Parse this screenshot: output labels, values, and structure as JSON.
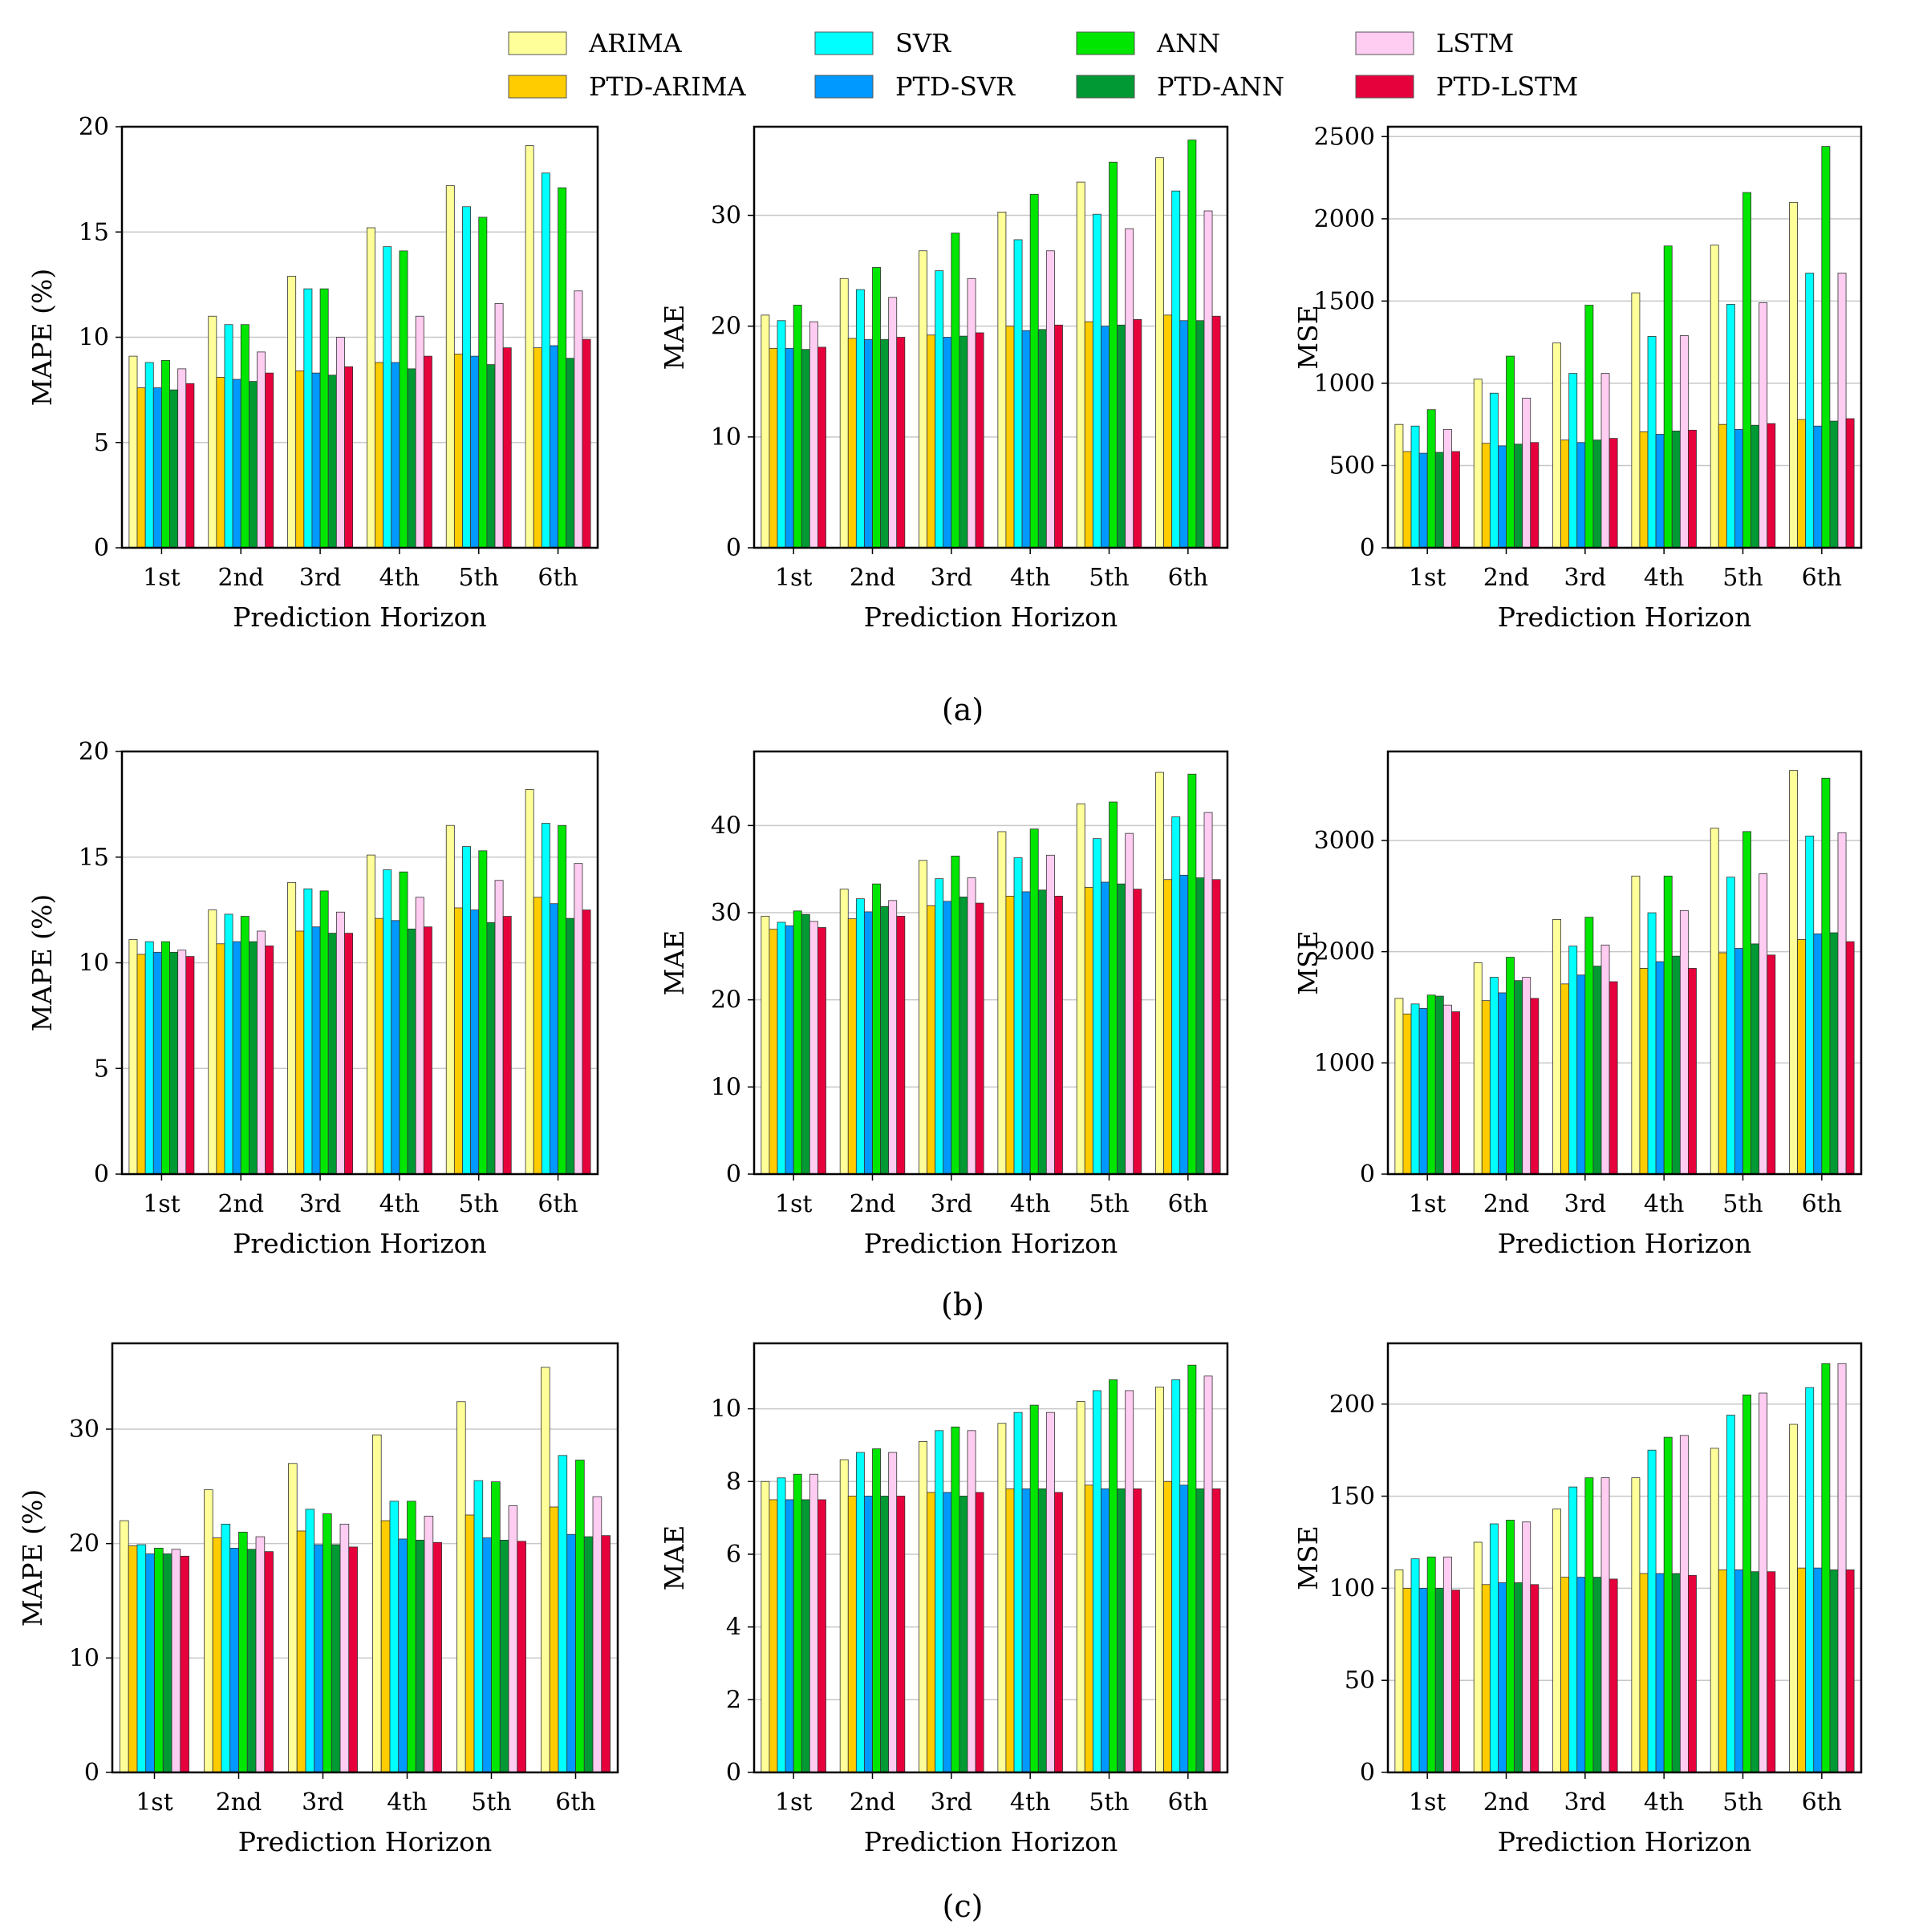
{
  "legend": [
    {
      "name": "ARIMA",
      "color": "#ffff99"
    },
    {
      "name": "SVR",
      "color": "#00ffff"
    },
    {
      "name": "ANN",
      "color": "#00e600"
    },
    {
      "name": "LSTM",
      "color": "#ffccf2"
    },
    {
      "name": "PTD-ARIMA",
      "color": "#ffcc00"
    },
    {
      "name": "PTD-SVR",
      "color": "#0099ff"
    },
    {
      "name": "PTD-ANN",
      "color": "#009933"
    },
    {
      "name": "PTD-LSTM",
      "color": "#e6003c"
    }
  ],
  "captions": {
    "a": "(a)",
    "b": "(b)",
    "c": "(c)"
  },
  "chart_data": [
    {
      "panel": "a",
      "type": "bar",
      "title": "",
      "xlabel": "Prediction Horizon",
      "ylabel": "MAPE (%)",
      "categories": [
        "1st",
        "2nd",
        "3rd",
        "4th",
        "5th",
        "6th"
      ],
      "ylim": [
        0,
        20
      ],
      "yticks": [
        0,
        5,
        10,
        15,
        20
      ],
      "grid": true,
      "series": [
        {
          "name": "ARIMA",
          "values": [
            9.1,
            11.0,
            12.9,
            15.2,
            17.2,
            19.1
          ]
        },
        {
          "name": "PTD-ARIMA",
          "values": [
            7.6,
            8.1,
            8.4,
            8.8,
            9.2,
            9.5
          ]
        },
        {
          "name": "SVR",
          "values": [
            8.8,
            10.6,
            12.3,
            14.3,
            16.2,
            17.8
          ]
        },
        {
          "name": "PTD-SVR",
          "values": [
            7.6,
            8.0,
            8.3,
            8.8,
            9.1,
            9.6
          ]
        },
        {
          "name": "ANN",
          "values": [
            8.9,
            10.6,
            12.3,
            14.1,
            15.7,
            17.1
          ]
        },
        {
          "name": "PTD-ANN",
          "values": [
            7.5,
            7.9,
            8.2,
            8.5,
            8.7,
            9.0
          ]
        },
        {
          "name": "LSTM",
          "values": [
            8.5,
            9.3,
            10.0,
            11.0,
            11.6,
            12.2
          ]
        },
        {
          "name": "PTD-LSTM",
          "values": [
            7.8,
            8.3,
            8.6,
            9.1,
            9.5,
            9.9
          ]
        }
      ]
    },
    {
      "panel": "a",
      "type": "bar",
      "title": "",
      "xlabel": "Prediction Horizon",
      "ylabel": "MAE",
      "categories": [
        "1st",
        "2nd",
        "3rd",
        "4th",
        "5th",
        "6th"
      ],
      "ylim": [
        0,
        38
      ],
      "yticks": [
        0,
        10,
        20,
        30
      ],
      "grid": true,
      "series": [
        {
          "name": "ARIMA",
          "values": [
            21.0,
            24.3,
            26.8,
            30.3,
            33.0,
            35.2
          ]
        },
        {
          "name": "PTD-ARIMA",
          "values": [
            18.0,
            18.9,
            19.2,
            20.0,
            20.4,
            21.0
          ]
        },
        {
          "name": "SVR",
          "values": [
            20.5,
            23.3,
            25.0,
            27.8,
            30.1,
            32.2
          ]
        },
        {
          "name": "PTD-SVR",
          "values": [
            18.0,
            18.8,
            19.0,
            19.6,
            20.0,
            20.5
          ]
        },
        {
          "name": "ANN",
          "values": [
            21.9,
            25.3,
            28.4,
            31.9,
            34.8,
            36.8
          ]
        },
        {
          "name": "PTD-ANN",
          "values": [
            17.9,
            18.8,
            19.1,
            19.7,
            20.1,
            20.5
          ]
        },
        {
          "name": "LSTM",
          "values": [
            20.4,
            22.6,
            24.3,
            26.8,
            28.8,
            30.4
          ]
        },
        {
          "name": "PTD-LSTM",
          "values": [
            18.1,
            19.0,
            19.4,
            20.1,
            20.6,
            20.9
          ]
        }
      ]
    },
    {
      "panel": "a",
      "type": "bar",
      "title": "",
      "xlabel": "Prediction Horizon",
      "ylabel": "MSE",
      "categories": [
        "1st",
        "2nd",
        "3rd",
        "4th",
        "5th",
        "6th"
      ],
      "ylim": [
        0,
        2560
      ],
      "yticks": [
        0,
        500,
        1000,
        1500,
        2000,
        2500
      ],
      "grid": true,
      "series": [
        {
          "name": "ARIMA",
          "values": [
            750,
            1025,
            1245,
            1550,
            1840,
            2100
          ]
        },
        {
          "name": "PTD-ARIMA",
          "values": [
            585,
            635,
            655,
            705,
            750,
            780
          ]
        },
        {
          "name": "SVR",
          "values": [
            740,
            940,
            1060,
            1285,
            1480,
            1670
          ]
        },
        {
          "name": "PTD-SVR",
          "values": [
            575,
            620,
            640,
            690,
            720,
            740
          ]
        },
        {
          "name": "ANN",
          "values": [
            840,
            1165,
            1475,
            1835,
            2160,
            2440
          ]
        },
        {
          "name": "PTD-ANN",
          "values": [
            580,
            630,
            655,
            710,
            745,
            770
          ]
        },
        {
          "name": "LSTM",
          "values": [
            720,
            910,
            1060,
            1290,
            1490,
            1670
          ]
        },
        {
          "name": "PTD-LSTM",
          "values": [
            585,
            640,
            665,
            715,
            755,
            785
          ]
        }
      ]
    },
    {
      "panel": "b",
      "type": "bar",
      "title": "",
      "xlabel": "Prediction Horizon",
      "ylabel": "MAPE (%)",
      "categories": [
        "1st",
        "2nd",
        "3rd",
        "4th",
        "5th",
        "6th"
      ],
      "ylim": [
        0,
        20
      ],
      "yticks": [
        0,
        5,
        10,
        15,
        20
      ],
      "grid": true,
      "series": [
        {
          "name": "ARIMA",
          "values": [
            11.1,
            12.5,
            13.8,
            15.1,
            16.5,
            18.2
          ]
        },
        {
          "name": "PTD-ARIMA",
          "values": [
            10.4,
            10.9,
            11.5,
            12.1,
            12.6,
            13.1
          ]
        },
        {
          "name": "SVR",
          "values": [
            11.0,
            12.3,
            13.5,
            14.4,
            15.5,
            16.6
          ]
        },
        {
          "name": "PTD-SVR",
          "values": [
            10.5,
            11.0,
            11.7,
            12.0,
            12.5,
            12.8
          ]
        },
        {
          "name": "ANN",
          "values": [
            11.0,
            12.2,
            13.4,
            14.3,
            15.3,
            16.5
          ]
        },
        {
          "name": "PTD-ANN",
          "values": [
            10.5,
            11.0,
            11.4,
            11.6,
            11.9,
            12.1
          ]
        },
        {
          "name": "LSTM",
          "values": [
            10.6,
            11.5,
            12.4,
            13.1,
            13.9,
            14.7
          ]
        },
        {
          "name": "PTD-LSTM",
          "values": [
            10.3,
            10.8,
            11.4,
            11.7,
            12.2,
            12.5
          ]
        }
      ]
    },
    {
      "panel": "b",
      "type": "bar",
      "title": "",
      "xlabel": "Prediction Horizon",
      "ylabel": "MAE",
      "categories": [
        "1st",
        "2nd",
        "3rd",
        "4th",
        "5th",
        "6th"
      ],
      "ylim": [
        0,
        48.5
      ],
      "yticks": [
        0,
        10,
        20,
        30,
        40
      ],
      "grid": true,
      "series": [
        {
          "name": "ARIMA",
          "values": [
            29.6,
            32.7,
            36.0,
            39.3,
            42.5,
            46.1
          ]
        },
        {
          "name": "PTD-ARIMA",
          "values": [
            28.1,
            29.3,
            30.8,
            31.9,
            32.9,
            33.8
          ]
        },
        {
          "name": "SVR",
          "values": [
            28.9,
            31.6,
            33.9,
            36.3,
            38.5,
            41.0
          ]
        },
        {
          "name": "PTD-SVR",
          "values": [
            28.5,
            30.1,
            31.3,
            32.4,
            33.5,
            34.3
          ]
        },
        {
          "name": "ANN",
          "values": [
            30.2,
            33.3,
            36.5,
            39.6,
            42.7,
            45.9
          ]
        },
        {
          "name": "PTD-ANN",
          "values": [
            29.8,
            30.7,
            31.8,
            32.6,
            33.3,
            34.0
          ]
        },
        {
          "name": "LSTM",
          "values": [
            29.0,
            31.4,
            34.0,
            36.6,
            39.1,
            41.5
          ]
        },
        {
          "name": "PTD-LSTM",
          "values": [
            28.3,
            29.6,
            31.1,
            31.9,
            32.7,
            33.8
          ]
        }
      ]
    },
    {
      "panel": "b",
      "type": "bar",
      "title": "",
      "xlabel": "Prediction Horizon",
      "ylabel": "MSE",
      "categories": [
        "1st",
        "2nd",
        "3rd",
        "4th",
        "5th",
        "6th"
      ],
      "ylim": [
        0,
        3800
      ],
      "yticks": [
        0,
        1000,
        2000,
        3000
      ],
      "grid": true,
      "series": [
        {
          "name": "ARIMA",
          "values": [
            1580,
            1900,
            2290,
            2680,
            3110,
            3630
          ]
        },
        {
          "name": "PTD-ARIMA",
          "values": [
            1440,
            1560,
            1710,
            1850,
            1990,
            2110
          ]
        },
        {
          "name": "SVR",
          "values": [
            1530,
            1770,
            2050,
            2350,
            2670,
            3040
          ]
        },
        {
          "name": "PTD-SVR",
          "values": [
            1490,
            1630,
            1790,
            1910,
            2030,
            2160
          ]
        },
        {
          "name": "ANN",
          "values": [
            1610,
            1950,
            2310,
            2680,
            3080,
            3560
          ]
        },
        {
          "name": "PTD-ANN",
          "values": [
            1600,
            1740,
            1870,
            1960,
            2070,
            2170
          ]
        },
        {
          "name": "LSTM",
          "values": [
            1520,
            1770,
            2060,
            2370,
            2700,
            3070
          ]
        },
        {
          "name": "PTD-LSTM",
          "values": [
            1460,
            1580,
            1730,
            1850,
            1970,
            2090
          ]
        }
      ]
    },
    {
      "panel": "c",
      "type": "bar",
      "title": "",
      "xlabel": "Prediction Horizon",
      "ylabel": "MAPE (%)",
      "categories": [
        "1st",
        "2nd",
        "3rd",
        "4th",
        "5th",
        "6th"
      ],
      "ylim": [
        0,
        37.5
      ],
      "yticks": [
        0,
        10,
        20,
        30
      ],
      "grid": true,
      "series": [
        {
          "name": "ARIMA",
          "values": [
            22.0,
            24.7,
            27.0,
            29.5,
            32.4,
            35.4
          ]
        },
        {
          "name": "PTD-ARIMA",
          "values": [
            19.8,
            20.5,
            21.1,
            22.0,
            22.5,
            23.2
          ]
        },
        {
          "name": "SVR",
          "values": [
            19.9,
            21.7,
            23.0,
            23.7,
            25.5,
            27.7
          ]
        },
        {
          "name": "PTD-SVR",
          "values": [
            19.1,
            19.6,
            19.9,
            20.4,
            20.5,
            20.8
          ]
        },
        {
          "name": "ANN",
          "values": [
            19.6,
            21.0,
            22.6,
            23.7,
            25.4,
            27.3
          ]
        },
        {
          "name": "PTD-ANN",
          "values": [
            19.1,
            19.5,
            19.9,
            20.3,
            20.3,
            20.6
          ]
        },
        {
          "name": "LSTM",
          "values": [
            19.5,
            20.6,
            21.7,
            22.4,
            23.3,
            24.1
          ]
        },
        {
          "name": "PTD-LSTM",
          "values": [
            18.9,
            19.3,
            19.7,
            20.1,
            20.2,
            20.7
          ]
        }
      ]
    },
    {
      "panel": "c",
      "type": "bar",
      "title": "",
      "xlabel": "Prediction Horizon",
      "ylabel": "MAE",
      "categories": [
        "1st",
        "2nd",
        "3rd",
        "4th",
        "5th",
        "6th"
      ],
      "ylim": [
        0,
        11.8
      ],
      "yticks": [
        0,
        2,
        4,
        6,
        8,
        10
      ],
      "grid": true,
      "series": [
        {
          "name": "ARIMA",
          "values": [
            8.0,
            8.6,
            9.1,
            9.6,
            10.2,
            10.6
          ]
        },
        {
          "name": "PTD-ARIMA",
          "values": [
            7.5,
            7.6,
            7.7,
            7.8,
            7.9,
            8.0
          ]
        },
        {
          "name": "SVR",
          "values": [
            8.1,
            8.8,
            9.4,
            9.9,
            10.5,
            10.8
          ]
        },
        {
          "name": "PTD-SVR",
          "values": [
            7.5,
            7.6,
            7.7,
            7.8,
            7.8,
            7.9
          ]
        },
        {
          "name": "ANN",
          "values": [
            8.2,
            8.9,
            9.5,
            10.1,
            10.8,
            11.2
          ]
        },
        {
          "name": "PTD-ANN",
          "values": [
            7.5,
            7.6,
            7.6,
            7.8,
            7.8,
            7.8
          ]
        },
        {
          "name": "LSTM",
          "values": [
            8.2,
            8.8,
            9.4,
            9.9,
            10.5,
            10.9
          ]
        },
        {
          "name": "PTD-LSTM",
          "values": [
            7.5,
            7.6,
            7.7,
            7.7,
            7.8,
            7.8
          ]
        }
      ]
    },
    {
      "panel": "c",
      "type": "bar",
      "title": "",
      "xlabel": "Prediction Horizon",
      "ylabel": "MSE",
      "categories": [
        "1st",
        "2nd",
        "3rd",
        "4th",
        "5th",
        "6th"
      ],
      "ylim": [
        0,
        233
      ],
      "yticks": [
        0,
        50,
        100,
        150,
        200
      ],
      "grid": true,
      "series": [
        {
          "name": "ARIMA",
          "values": [
            110,
            125,
            143,
            160,
            176,
            189
          ]
        },
        {
          "name": "PTD-ARIMA",
          "values": [
            100,
            102,
            106,
            108,
            110,
            111
          ]
        },
        {
          "name": "SVR",
          "values": [
            116,
            135,
            155,
            175,
            194,
            209
          ]
        },
        {
          "name": "PTD-SVR",
          "values": [
            100,
            103,
            106,
            108,
            110,
            111
          ]
        },
        {
          "name": "ANN",
          "values": [
            117,
            137,
            160,
            182,
            205,
            222
          ]
        },
        {
          "name": "PTD-ANN",
          "values": [
            100,
            103,
            106,
            108,
            109,
            110
          ]
        },
        {
          "name": "LSTM",
          "values": [
            117,
            136,
            160,
            183,
            206,
            222
          ]
        },
        {
          "name": "PTD-LSTM",
          "values": [
            99,
            102,
            105,
            107,
            109,
            110
          ]
        }
      ]
    }
  ]
}
